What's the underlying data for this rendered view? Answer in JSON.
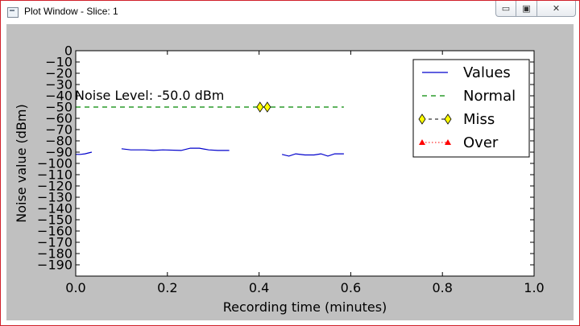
{
  "window": {
    "title": "Plot Window - Slice: 1",
    "controls": {
      "minimize": "▭",
      "maximize": "▣",
      "close": "✕"
    }
  },
  "chart_data": {
    "type": "line",
    "xlabel": "Recording time (minutes)",
    "ylabel": "Noise value (dBm)",
    "xlim": [
      0.0,
      1.0
    ],
    "ylim": [
      -200,
      0
    ],
    "xticks": [
      0.0,
      0.2,
      0.4,
      0.6,
      0.8,
      1.0
    ],
    "xtick_labels": [
      "0.0",
      "0.2",
      "0.4",
      "0.6",
      "0.8",
      "1.0"
    ],
    "yticks": [
      0,
      -10,
      -20,
      -30,
      -40,
      -50,
      -60,
      -70,
      -80,
      -90,
      -100,
      -110,
      -120,
      -130,
      -140,
      -150,
      -160,
      -170,
      -180,
      -190
    ],
    "ytick_labels": [
      "0",
      "−10",
      "−20",
      "−30",
      "−40",
      "−50",
      "−60",
      "−70",
      "−80",
      "−90",
      "−100",
      "−110",
      "−120",
      "−130",
      "−140",
      "−150",
      "−160",
      "−170",
      "−180",
      "−190"
    ],
    "grid": false,
    "legend_position": "top-right",
    "annotation": "Noise Level: -50.0 dBm",
    "series": [
      {
        "name": "Values",
        "style": "solid",
        "color": "#0000cc",
        "segments": [
          [
            [
              0.0,
              -92
            ],
            [
              0.01,
              -92
            ],
            [
              0.02,
              -91.5
            ],
            [
              0.035,
              -90
            ]
          ],
          [
            [
              0.1,
              -87
            ],
            [
              0.12,
              -88
            ],
            [
              0.15,
              -88
            ],
            [
              0.17,
              -88.5
            ],
            [
              0.19,
              -88
            ],
            [
              0.23,
              -88.5
            ],
            [
              0.25,
              -86.5
            ],
            [
              0.27,
              -86.5
            ],
            [
              0.29,
              -88
            ],
            [
              0.31,
              -88.5
            ],
            [
              0.335,
              -88.5
            ]
          ],
          [
            [
              0.45,
              -92
            ],
            [
              0.465,
              -93.5
            ],
            [
              0.48,
              -91.5
            ],
            [
              0.5,
              -92.5
            ],
            [
              0.52,
              -92.5
            ],
            [
              0.535,
              -91.5
            ],
            [
              0.55,
              -93.5
            ],
            [
              0.565,
              -91.5
            ],
            [
              0.585,
              -91.5
            ]
          ]
        ]
      },
      {
        "name": "Normal",
        "style": "dashed",
        "color": "#008800",
        "points": [
          [
            0.0,
            -50
          ],
          [
            0.585,
            -50
          ]
        ]
      },
      {
        "name": "Miss",
        "style": "diamond-marker",
        "color": "#ffff00",
        "points": [
          [
            0.402,
            -50
          ],
          [
            0.418,
            -50
          ]
        ]
      },
      {
        "name": "Over",
        "style": "triangle-dotted",
        "color": "#ff0000",
        "points": []
      }
    ]
  }
}
